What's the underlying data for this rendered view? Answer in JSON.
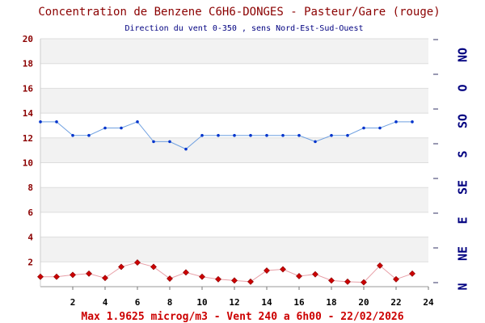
{
  "chart_data": {
    "type": "line",
    "title": "Concentration de Benzene C6H6-DONGES - Pasteur/Gare (rouge)",
    "subtitle": "Direction du vent 0-350 , sens Nord-Est-Sud-Ouest",
    "footer": "Max 1.9625 microg/m3 - Vent 240  a 6h00 - 22/02/2026",
    "x": [
      0,
      1,
      2,
      3,
      4,
      5,
      6,
      7,
      8,
      9,
      10,
      11,
      12,
      13,
      14,
      15,
      16,
      17,
      18,
      19,
      20,
      21,
      22,
      23
    ],
    "xlim": [
      0,
      24
    ],
    "x_ticks": [
      "2",
      "4",
      "6",
      "8",
      "10",
      "12",
      "14",
      "16",
      "18",
      "20",
      "22",
      "24"
    ],
    "x_tick_values": [
      2,
      4,
      6,
      8,
      10,
      12,
      14,
      16,
      18,
      20,
      22,
      24
    ],
    "ylim": [
      0,
      20
    ],
    "y_ticks": [
      "2",
      "4",
      "6",
      "8",
      "10",
      "12",
      "14",
      "16",
      "18",
      "20"
    ],
    "y_tick_values": [
      2,
      4,
      6,
      8,
      10,
      12,
      14,
      16,
      18,
      20
    ],
    "right_axis_labels": [
      "N",
      "NE",
      "E",
      "SE",
      "S",
      "SO",
      "O",
      "NO"
    ],
    "grid": true,
    "series": [
      {
        "role": "benzene",
        "color": "#cc0000",
        "line_color": "#e8a0a8",
        "marker": "diamond",
        "values": [
          0.8,
          0.8,
          0.95,
          1.05,
          0.7,
          1.6,
          1.95,
          1.6,
          0.65,
          1.15,
          0.8,
          0.6,
          0.5,
          0.4,
          1.3,
          1.4,
          0.85,
          1.0,
          0.5,
          0.4,
          0.35,
          1.7,
          0.6,
          1.05
        ]
      },
      {
        "role": "wind-direction",
        "color": "#0033cc",
        "line_color": "#6fa0e0",
        "marker": "dot",
        "values": [
          13.3,
          13.3,
          12.2,
          12.2,
          12.8,
          12.8,
          13.3,
          11.7,
          11.7,
          11.1,
          12.2,
          12.2,
          12.2,
          12.2,
          12.2,
          12.2,
          12.2,
          11.7,
          12.2,
          12.2,
          12.8,
          12.8,
          13.3,
          13.3
        ]
      }
    ],
    "colors": {
      "title": "#8b0000",
      "subtitle": "#000080",
      "footer": "#cc0000",
      "left_ticks": "#8b0000",
      "right_ticks": "#000080",
      "band": "#f2f2f2"
    }
  }
}
